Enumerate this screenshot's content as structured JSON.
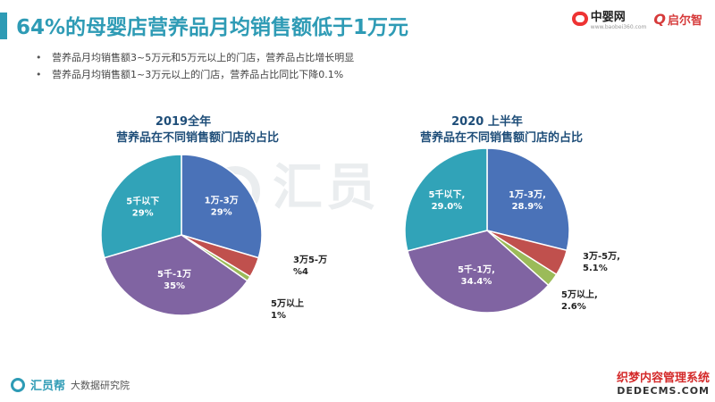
{
  "header": {
    "title": "64%的母婴店营养品月均销售额低于1万元"
  },
  "logos": {
    "zhongying": "中婴网",
    "zhongying_sub": "www.baobei360.com",
    "qier": "启尔智",
    "qier_mark": "Q"
  },
  "bullets": [
    "营养品月均销售额3~5万元和5万元以上的门店，营养品占比增长明显",
    "营养品月均销售额1~3万元以上的门店，营养品占比同比下降0.1%"
  ],
  "watermark": "汇员",
  "footer": {
    "brand": "汇员帮",
    "sub": "大数据研究院"
  },
  "corner": {
    "line1": "织梦内容管理系统",
    "line2": "DEDECMS.COM"
  },
  "chart_data": [
    {
      "type": "pie",
      "title": "2019全年",
      "subtitle": "营养品在不同销售额门店的占比",
      "slices": [
        {
          "label": "1万-3万",
          "value": 29,
          "display": "29%",
          "color": "#4a72b8"
        },
        {
          "label": "3万5-万",
          "value": 4,
          "display": "%4",
          "color": "#c0504d"
        },
        {
          "label": "5万以上",
          "value": 1,
          "display": "1%",
          "color": "#9bbb59"
        },
        {
          "label": "5千-1万",
          "value": 35,
          "display": "35%",
          "color": "#8064a2"
        },
        {
          "label": "5千以下",
          "value": 29,
          "display": "29%",
          "color": "#31a3b8"
        }
      ]
    },
    {
      "type": "pie",
      "title": "2020 上半年",
      "subtitle": "营养品在不同销售额门店的占比",
      "slices": [
        {
          "label": "1万-3万,",
          "value": 28.9,
          "display": "28.9%",
          "color": "#4a72b8"
        },
        {
          "label": "3万-5万,",
          "value": 5.1,
          "display": "5.1%",
          "color": "#c0504d"
        },
        {
          "label": "5万以上,",
          "value": 2.6,
          "display": "2.6%",
          "color": "#9bbb59"
        },
        {
          "label": "5千-1万,",
          "value": 34.4,
          "display": "34.4%",
          "color": "#8064a2"
        },
        {
          "label": "5千以下,",
          "value": 29.0,
          "display": "29.0%",
          "color": "#31a3b8"
        }
      ]
    }
  ]
}
